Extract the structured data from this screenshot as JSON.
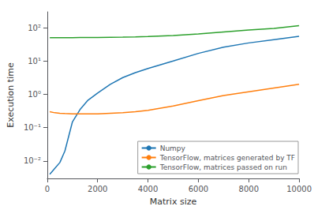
{
  "chart_data": {
    "type": "line",
    "xlabel": "Matrix size",
    "ylabel": "Execution time",
    "x": [
      100,
      300,
      500,
      700,
      1000,
      1300,
      1600,
      2000,
      2500,
      3000,
      3500,
      4000,
      5000,
      6000,
      7000,
      8000,
      9000,
      10000
    ],
    "series": [
      {
        "name": "Numpy",
        "color": "#1f77b4",
        "values": [
          0.004,
          0.006,
          0.009,
          0.02,
          0.15,
          0.35,
          0.65,
          1.1,
          2.0,
          3.2,
          4.5,
          6.0,
          10.0,
          17.0,
          26.0,
          35.0,
          44.0,
          55.0
        ]
      },
      {
        "name": "TensorFlow, matrices generated by TF",
        "color": "#ff7f0e",
        "values": [
          0.3,
          0.28,
          0.27,
          0.265,
          0.26,
          0.258,
          0.258,
          0.26,
          0.27,
          0.28,
          0.3,
          0.33,
          0.45,
          0.65,
          0.92,
          1.2,
          1.55,
          2.0
        ]
      },
      {
        "name": "TensorFlow, matrices passed on run",
        "color": "#2ca02c",
        "values": [
          50.0,
          50.2,
          50.3,
          50.4,
          50.5,
          50.6,
          50.7,
          51.0,
          51.5,
          52.0,
          53.0,
          54.5,
          58.0,
          65.0,
          75.0,
          85.0,
          95.0,
          115.0
        ]
      }
    ],
    "xlim": [
      0,
      10000
    ],
    "ylim": [
      0.003,
      300
    ],
    "xticks": [
      0,
      2000,
      4000,
      6000,
      8000,
      10000
    ],
    "yticks": [
      {
        "value": 0.01,
        "label": "10⁻²"
      },
      {
        "value": 0.1,
        "label": "10⁻¹"
      },
      {
        "value": 1,
        "label": "10⁰"
      },
      {
        "value": 10,
        "label": "10¹"
      },
      {
        "value": 100,
        "label": "10²"
      }
    ],
    "log": "y",
    "grid": false,
    "legend": "lower right"
  }
}
